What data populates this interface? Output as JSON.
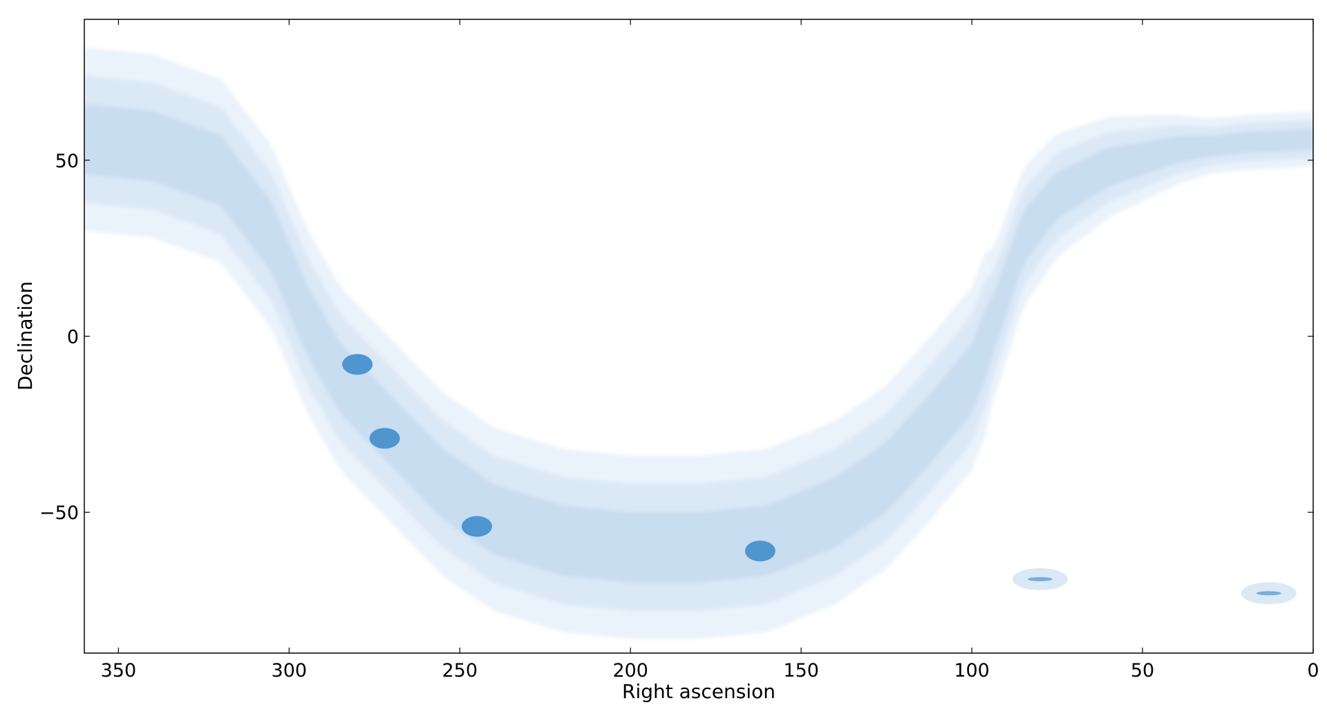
{
  "chart_data": {
    "type": "contourf",
    "xlabel": "Right ascension",
    "ylabel": "Declination",
    "xlim": [
      360,
      0
    ],
    "ylim": [
      -90,
      90
    ],
    "xticks": [
      350,
      300,
      250,
      200,
      150,
      100,
      50,
      0
    ],
    "yticks": [
      50,
      0,
      -50
    ],
    "xtick_labels": [
      "350",
      "300",
      "250",
      "200",
      "150",
      "100",
      "50",
      "0"
    ],
    "ytick_labels": [
      "50",
      "0",
      "−50"
    ],
    "grid": false,
    "levels": [
      {
        "name": "level-1",
        "color": "#eaf2fb"
      },
      {
        "name": "level-2",
        "color": "#dbe8f6"
      },
      {
        "name": "level-3",
        "color": "#c9ddf0"
      },
      {
        "name": "level-4",
        "color": "#4f95cf"
      }
    ],
    "band": {
      "description_points_ra": [
        360,
        340,
        320,
        305,
        295,
        285,
        275,
        265,
        255,
        240,
        220,
        200,
        180,
        160,
        140,
        125,
        112,
        100,
        92,
        85,
        75,
        60,
        40,
        20,
        0
      ],
      "center_dec": [
        56,
        54,
        47,
        28,
        5,
        -12,
        -22,
        -32,
        -42,
        -52,
        -58,
        -60,
        -60,
        -58,
        -50,
        -40,
        -26,
        -12,
        8,
        28,
        40,
        48,
        53,
        55,
        56
      ]
    },
    "features": [
      {
        "ra": 272,
        "dec": -29,
        "level": 4
      },
      {
        "ra": 245,
        "dec": -54,
        "level": 4
      },
      {
        "ra": 162,
        "dec": -61,
        "level": 4
      },
      {
        "ra": 280,
        "dec": -8,
        "level": 4
      },
      {
        "ra": 80,
        "dec": -69,
        "level": 2
      },
      {
        "ra": 13,
        "dec": -73,
        "level": 2
      }
    ]
  }
}
